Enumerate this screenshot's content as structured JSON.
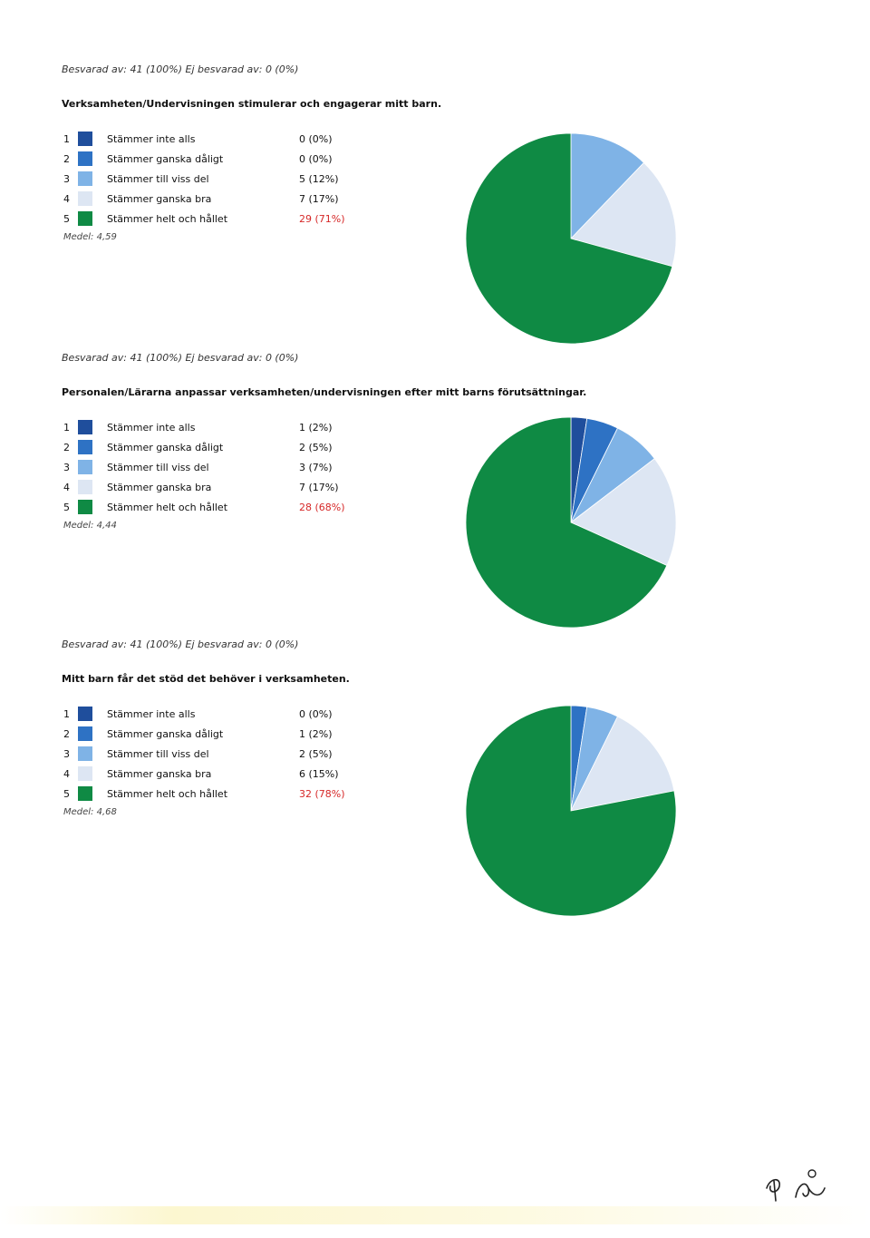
{
  "colors": {
    "s1": "#1f4e9c",
    "s2": "#2e72c4",
    "s3": "#7fb3e6",
    "s4": "#dde6f3",
    "s5": "#0f8a44",
    "highlight": "#d62828"
  },
  "chart_data": [
    {
      "type": "pie",
      "answered_text": "Besvarad av: 41 (100%) Ej besvarad av: 0 (0%)",
      "title": "Verksamheten/Undervisningen stimulerar och engagerar mitt barn.",
      "categories": [
        "Stämmer inte alls",
        "Stämmer ganska dåligt",
        "Stämmer till viss del",
        "Stämmer ganska bra",
        "Stämmer helt och hållet"
      ],
      "numbers": [
        "1",
        "2",
        "3",
        "4",
        "5"
      ],
      "values": [
        0,
        0,
        5,
        7,
        29
      ],
      "labels": [
        "0 (0%)",
        "0 (0%)",
        "5 (12%)",
        "7 (17%)",
        "29 (71%)"
      ],
      "mean_text": "Medel: 4,59"
    },
    {
      "type": "pie",
      "answered_text": "Besvarad av: 41 (100%) Ej besvarad av: 0 (0%)",
      "title": "Personalen/Lärarna anpassar verksamheten/undervisningen efter mitt barns förutsättningar.",
      "categories": [
        "Stämmer inte alls",
        "Stämmer ganska dåligt",
        "Stämmer till viss del",
        "Stämmer ganska bra",
        "Stämmer helt och hållet"
      ],
      "numbers": [
        "1",
        "2",
        "3",
        "4",
        "5"
      ],
      "values": [
        1,
        2,
        3,
        7,
        28
      ],
      "labels": [
        "1 (2%)",
        "2 (5%)",
        "3 (7%)",
        "7 (17%)",
        "28 (68%)"
      ],
      "mean_text": "Medel: 4,44"
    },
    {
      "type": "pie",
      "answered_text": "Besvarad av: 41 (100%) Ej besvarad av: 0 (0%)",
      "title": "Mitt barn får det stöd det behöver i verksamheten.",
      "categories": [
        "Stämmer inte alls",
        "Stämmer ganska dåligt",
        "Stämmer till viss del",
        "Stämmer ganska bra",
        "Stämmer helt och hållet"
      ],
      "numbers": [
        "1",
        "2",
        "3",
        "4",
        "5"
      ],
      "values": [
        0,
        1,
        2,
        6,
        32
      ],
      "labels": [
        "0 (0%)",
        "1 (2%)",
        "2 (5%)",
        "6 (15%)",
        "32 (78%)"
      ],
      "mean_text": "Medel: 4,68"
    }
  ]
}
